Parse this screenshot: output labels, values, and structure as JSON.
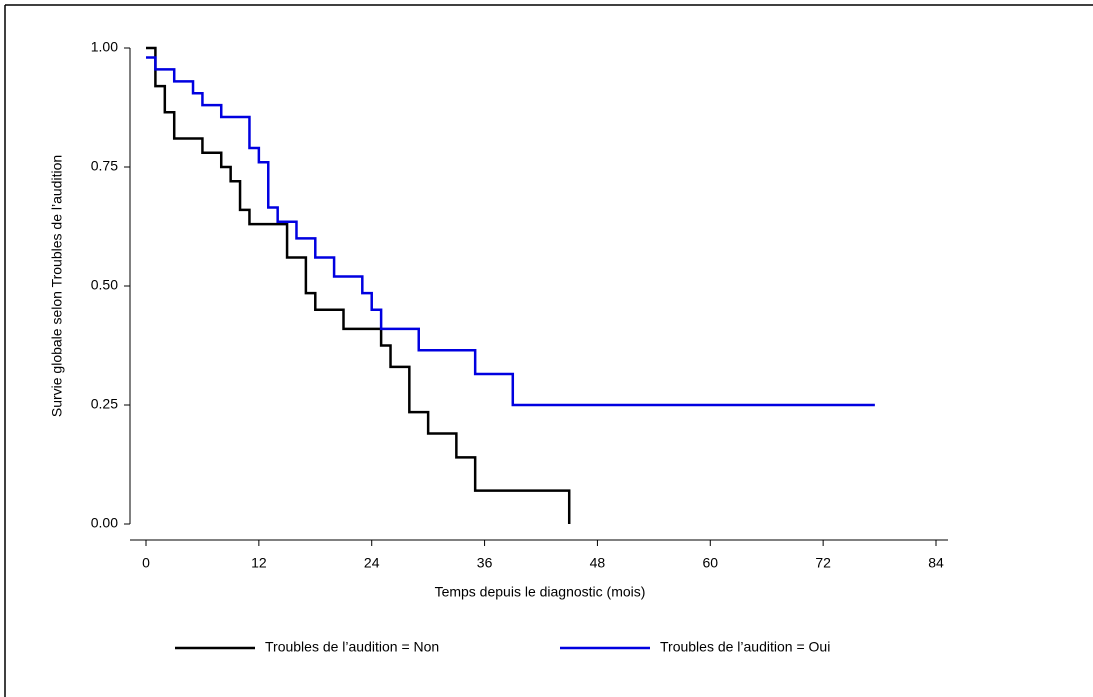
{
  "chart_data": {
    "type": "step",
    "xlabel": "Temps depuis le diagnostic (mois)",
    "ylabel": "Survie globale selon Troubles de l’audition",
    "xlim": [
      0,
      84
    ],
    "xticks": [
      0,
      12,
      24,
      36,
      48,
      60,
      72,
      84
    ],
    "ylim": [
      0,
      1
    ],
    "yticks": [
      {
        "value": 0,
        "label": "0.00"
      },
      {
        "value": 0.25,
        "label": "0.25"
      },
      {
        "value": 0.5,
        "label": "0.50"
      },
      {
        "value": 0.75,
        "label": "0.75"
      },
      {
        "value": 1,
        "label": "1.00"
      }
    ],
    "series": [
      {
        "name": "Troubles de l’audition = Non",
        "color": "#000000",
        "x": [
          0,
          1,
          2,
          3,
          6,
          8,
          9,
          10,
          11,
          15,
          17,
          18,
          21,
          25,
          26,
          28,
          30,
          33,
          35,
          45
        ],
        "values": [
          1.0,
          0.92,
          0.865,
          0.81,
          0.78,
          0.75,
          0.72,
          0.66,
          0.63,
          0.56,
          0.485,
          0.45,
          0.41,
          0.375,
          0.33,
          0.235,
          0.19,
          0.14,
          0.07,
          0.0
        ]
      },
      {
        "name": "Troubles de l’audition = Oui",
        "color": "#0000e0",
        "x": [
          0,
          1,
          3,
          5,
          6,
          8,
          11,
          12,
          13,
          14,
          16,
          18,
          20,
          23,
          24,
          25,
          29,
          35,
          39,
          77.5
        ],
        "values": [
          0.98,
          0.955,
          0.93,
          0.905,
          0.88,
          0.855,
          0.79,
          0.76,
          0.665,
          0.635,
          0.6,
          0.56,
          0.52,
          0.485,
          0.45,
          0.41,
          0.365,
          0.315,
          0.25,
          0.25
        ]
      }
    ]
  }
}
